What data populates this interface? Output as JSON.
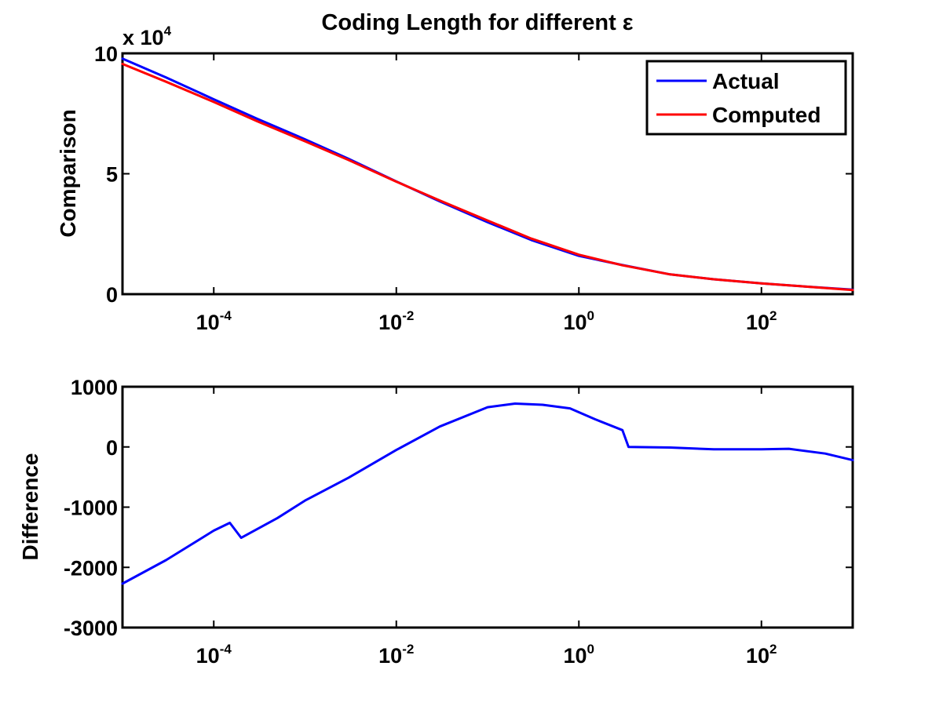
{
  "figure": {
    "title": "Coding Length for different ε"
  },
  "chart_data": [
    {
      "type": "line",
      "title": "Coding Length for different ε",
      "xlabel": "",
      "ylabel": "Comparison",
      "xscale": "log",
      "xlim": [
        1e-05,
        1000
      ],
      "ylim": [
        0,
        100000
      ],
      "x_ticks": [
        {
          "value": 0.0001,
          "base": "10",
          "exp": "-4"
        },
        {
          "value": 0.01,
          "base": "10",
          "exp": "-2"
        },
        {
          "value": 1,
          "base": "10",
          "exp": "0"
        },
        {
          "value": 100,
          "base": "10",
          "exp": "2"
        }
      ],
      "y_ticks": [
        {
          "value": 0,
          "label": "0"
        },
        {
          "value": 50000,
          "label": "5"
        },
        {
          "value": 100000,
          "label": "10"
        }
      ],
      "y_multiplier": {
        "prefix": "x 10",
        "exp": "4"
      },
      "grid": false,
      "legend": "top-right",
      "series": [
        {
          "name": "Actual",
          "color": "#0000ff",
          "x": [
            1e-05,
            3e-05,
            0.0001,
            0.0003,
            0.001,
            0.003,
            0.01,
            0.03,
            0.1,
            0.3,
            1,
            3,
            10,
            30,
            100,
            300,
            1000
          ],
          "y": [
            97800,
            90000,
            80900,
            72800,
            64300,
            56200,
            46800,
            38500,
            29900,
            22500,
            15900,
            12100,
            8200,
            6200,
            4500,
            3200,
            1900
          ]
        },
        {
          "name": "Computed",
          "color": "#ff0000",
          "x": [
            1e-05,
            3e-05,
            0.0001,
            0.0003,
            0.001,
            0.003,
            0.01,
            0.03,
            0.1,
            0.3,
            1,
            3,
            10,
            30,
            100,
            300,
            1000
          ],
          "y": [
            95600,
            88200,
            79800,
            71800,
            63500,
            55700,
            46700,
            38900,
            30600,
            23100,
            16400,
            12000,
            8200,
            6200,
            4500,
            3200,
            1700
          ]
        }
      ]
    },
    {
      "type": "line",
      "xlabel": "",
      "ylabel": "Difference",
      "xscale": "log",
      "xlim": [
        1e-05,
        1000
      ],
      "ylim": [
        -3000,
        1000
      ],
      "x_ticks": [
        {
          "value": 0.0001,
          "base": "10",
          "exp": "-4"
        },
        {
          "value": 0.01,
          "base": "10",
          "exp": "-2"
        },
        {
          "value": 1,
          "base": "10",
          "exp": "0"
        },
        {
          "value": 100,
          "base": "10",
          "exp": "2"
        }
      ],
      "y_ticks": [
        {
          "value": 1000,
          "label": "1000"
        },
        {
          "value": 0,
          "label": "0"
        },
        {
          "value": -1000,
          "label": "-1000"
        },
        {
          "value": -2000,
          "label": "-2000"
        },
        {
          "value": -3000,
          "label": "-3000"
        }
      ],
      "grid": false,
      "series": [
        {
          "color": "#0000ff",
          "x": [
            1e-05,
            3e-05,
            0.0001,
            0.00015,
            0.0002,
            0.0005,
            0.001,
            0.003,
            0.01,
            0.03,
            0.1,
            0.2,
            0.4,
            0.8,
            1.5,
            3,
            3.5,
            10,
            30,
            100,
            200,
            500,
            1000
          ],
          "y": [
            -2270,
            -1880,
            -1390,
            -1260,
            -1510,
            -1180,
            -890,
            -510,
            -50,
            340,
            660,
            720,
            700,
            640,
            460,
            280,
            0,
            -10,
            -40,
            -40,
            -30,
            -110,
            -220
          ]
        }
      ]
    }
  ]
}
